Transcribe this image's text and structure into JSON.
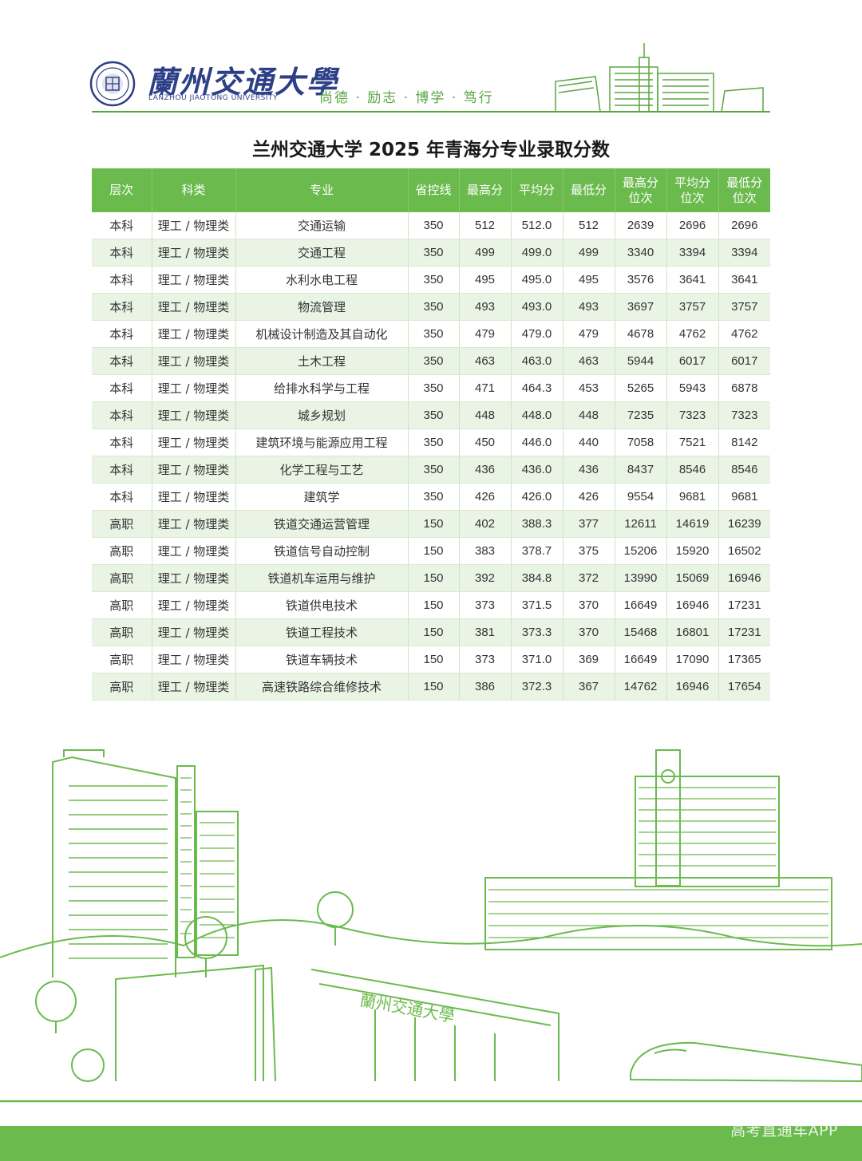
{
  "header": {
    "university_cn": "蘭州交通大學",
    "university_en": "LANZHOU JIAOTONG UNIVERSITY",
    "motto": "尚德 · 励志 · 博学 · 笃行",
    "accent_color": "#6bba4e",
    "brand_color": "#2d3f86"
  },
  "title": "兰州交通大学 2025 年青海分专业录取分数",
  "table": {
    "headers": [
      [
        "层次"
      ],
      [
        "科类"
      ],
      [
        "专业"
      ],
      [
        "省控线"
      ],
      [
        "最高分"
      ],
      [
        "平均分"
      ],
      [
        "最低分"
      ],
      [
        "最高分",
        "位次"
      ],
      [
        "平均分",
        "位次"
      ],
      [
        "最低分",
        "位次"
      ]
    ],
    "rows": [
      [
        "本科",
        "理工 / 物理类",
        "交通运输",
        "350",
        "512",
        "512.0",
        "512",
        "2639",
        "2696",
        "2696"
      ],
      [
        "本科",
        "理工 / 物理类",
        "交通工程",
        "350",
        "499",
        "499.0",
        "499",
        "3340",
        "3394",
        "3394"
      ],
      [
        "本科",
        "理工 / 物理类",
        "水利水电工程",
        "350",
        "495",
        "495.0",
        "495",
        "3576",
        "3641",
        "3641"
      ],
      [
        "本科",
        "理工 / 物理类",
        "物流管理",
        "350",
        "493",
        "493.0",
        "493",
        "3697",
        "3757",
        "3757"
      ],
      [
        "本科",
        "理工 / 物理类",
        "机械设计制造及其自动化",
        "350",
        "479",
        "479.0",
        "479",
        "4678",
        "4762",
        "4762"
      ],
      [
        "本科",
        "理工 / 物理类",
        "土木工程",
        "350",
        "463",
        "463.0",
        "463",
        "5944",
        "6017",
        "6017"
      ],
      [
        "本科",
        "理工 / 物理类",
        "给排水科学与工程",
        "350",
        "471",
        "464.3",
        "453",
        "5265",
        "5943",
        "6878"
      ],
      [
        "本科",
        "理工 / 物理类",
        "城乡规划",
        "350",
        "448",
        "448.0",
        "448",
        "7235",
        "7323",
        "7323"
      ],
      [
        "本科",
        "理工 / 物理类",
        "建筑环境与能源应用工程",
        "350",
        "450",
        "446.0",
        "440",
        "7058",
        "7521",
        "8142"
      ],
      [
        "本科",
        "理工 / 物理类",
        "化学工程与工艺",
        "350",
        "436",
        "436.0",
        "436",
        "8437",
        "8546",
        "8546"
      ],
      [
        "本科",
        "理工 / 物理类",
        "建筑学",
        "350",
        "426",
        "426.0",
        "426",
        "9554",
        "9681",
        "9681"
      ],
      [
        "高职",
        "理工 / 物理类",
        "铁道交通运营管理",
        "150",
        "402",
        "388.3",
        "377",
        "12611",
        "14619",
        "16239"
      ],
      [
        "高职",
        "理工 / 物理类",
        "铁道信号自动控制",
        "150",
        "383",
        "378.7",
        "375",
        "15206",
        "15920",
        "16502"
      ],
      [
        "高职",
        "理工 / 物理类",
        "铁道机车运用与维护",
        "150",
        "392",
        "384.8",
        "372",
        "13990",
        "15069",
        "16946"
      ],
      [
        "高职",
        "理工 / 物理类",
        "铁道供电技术",
        "150",
        "373",
        "371.5",
        "370",
        "16649",
        "16946",
        "17231"
      ],
      [
        "高职",
        "理工 / 物理类",
        "铁道工程技术",
        "150",
        "381",
        "373.3",
        "370",
        "15468",
        "16801",
        "17231"
      ],
      [
        "高职",
        "理工 / 物理类",
        "铁道车辆技术",
        "150",
        "373",
        "371.0",
        "369",
        "16649",
        "17090",
        "17365"
      ],
      [
        "高职",
        "理工 / 物理类",
        "高速铁路综合维修技术",
        "150",
        "386",
        "372.3",
        "367",
        "14762",
        "16946",
        "17654"
      ]
    ]
  },
  "bottom_building_sign": "蘭州交通大學",
  "watermark": "高考直通车APP"
}
